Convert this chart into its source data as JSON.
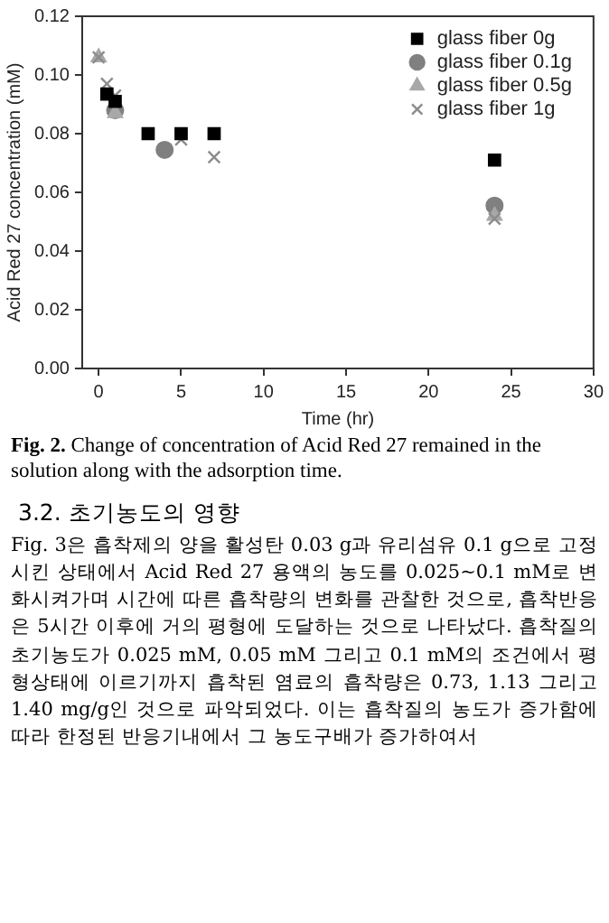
{
  "chart_data": {
    "type": "scatter",
    "xlabel": "Time (hr)",
    "ylabel": "Acid Red 27 concentration (mM)",
    "xlim": [
      -1,
      30
    ],
    "xticks": [
      0,
      5,
      10,
      15,
      20,
      25,
      30
    ],
    "ylim": [
      0,
      0.12
    ],
    "yticks": [
      {
        "value": 0,
        "label": "0.00"
      },
      {
        "value": 0.02,
        "label": "0.02"
      },
      {
        "value": 0.04,
        "label": "0.04"
      },
      {
        "value": 0.06,
        "label": "0.06"
      },
      {
        "value": 0.08,
        "label": "0.08"
      },
      {
        "value": 0.1,
        "label": "0.10"
      },
      {
        "value": 0.12,
        "label": "0.12"
      }
    ],
    "grid": false,
    "legend": "top right",
    "series": [
      {
        "name": "glass fiber 0g",
        "color": "#000000",
        "marker": "square",
        "x": [
          0.5,
          1,
          3,
          5,
          7,
          24
        ],
        "values": [
          0.0935,
          0.091,
          0.08,
          0.08,
          0.08,
          0.071
        ]
      },
      {
        "name": "glass fiber 0.1g",
        "color": "#808080",
        "marker": "circle",
        "x": [
          1,
          4,
          24
        ],
        "values": [
          0.088,
          0.0745,
          0.0555
        ]
      },
      {
        "name": "glass fiber 0.5g",
        "color": "#a8a8a8",
        "marker": "triangle",
        "x": [
          0,
          1,
          24
        ],
        "values": [
          0.106,
          0.087,
          0.052
        ]
      },
      {
        "name": "glass fiber 1g",
        "color": "#8c8c8c",
        "marker": "cross",
        "x": [
          0,
          0.5,
          1,
          5,
          7,
          24
        ],
        "values": [
          0.106,
          0.097,
          0.093,
          0.078,
          0.072,
          0.051
        ]
      }
    ],
    "annotations": [
      "Fig. 2. Change of concentration of Acid Red 27 remained in the solution along with the adsorption time.",
      "3.2. 초기농도의 영향",
      "Fig. 3은 흡착제의 양을 활성탄 0.03 g과 유리섬유 0.1 g으로 고정시킨 상태에서 Acid Red 27 용액의 농도를 0.025~0.1 mM로 변화시켜가며 시간에 따른 흡착량의 변화를 관찰한 것으로, 흡착반응은 5시간 이후에 거의 평형에 도달하는 것으로 나타났다. 흡착질의 초기농도가 0.025 mM, 0.05 mM 그리고 0.1 mM의 조건에서 평형상태에 이르기까지 흡착된 염료의 흡착량은 0.73, 1.13 그리고 1.40 mg/g인 것으로 파악되었다. 이는 흡착질의 농도가 증가함에 따라 한정된 반응기내에서 그 농도구배가 증가하여서"
    ]
  }
}
